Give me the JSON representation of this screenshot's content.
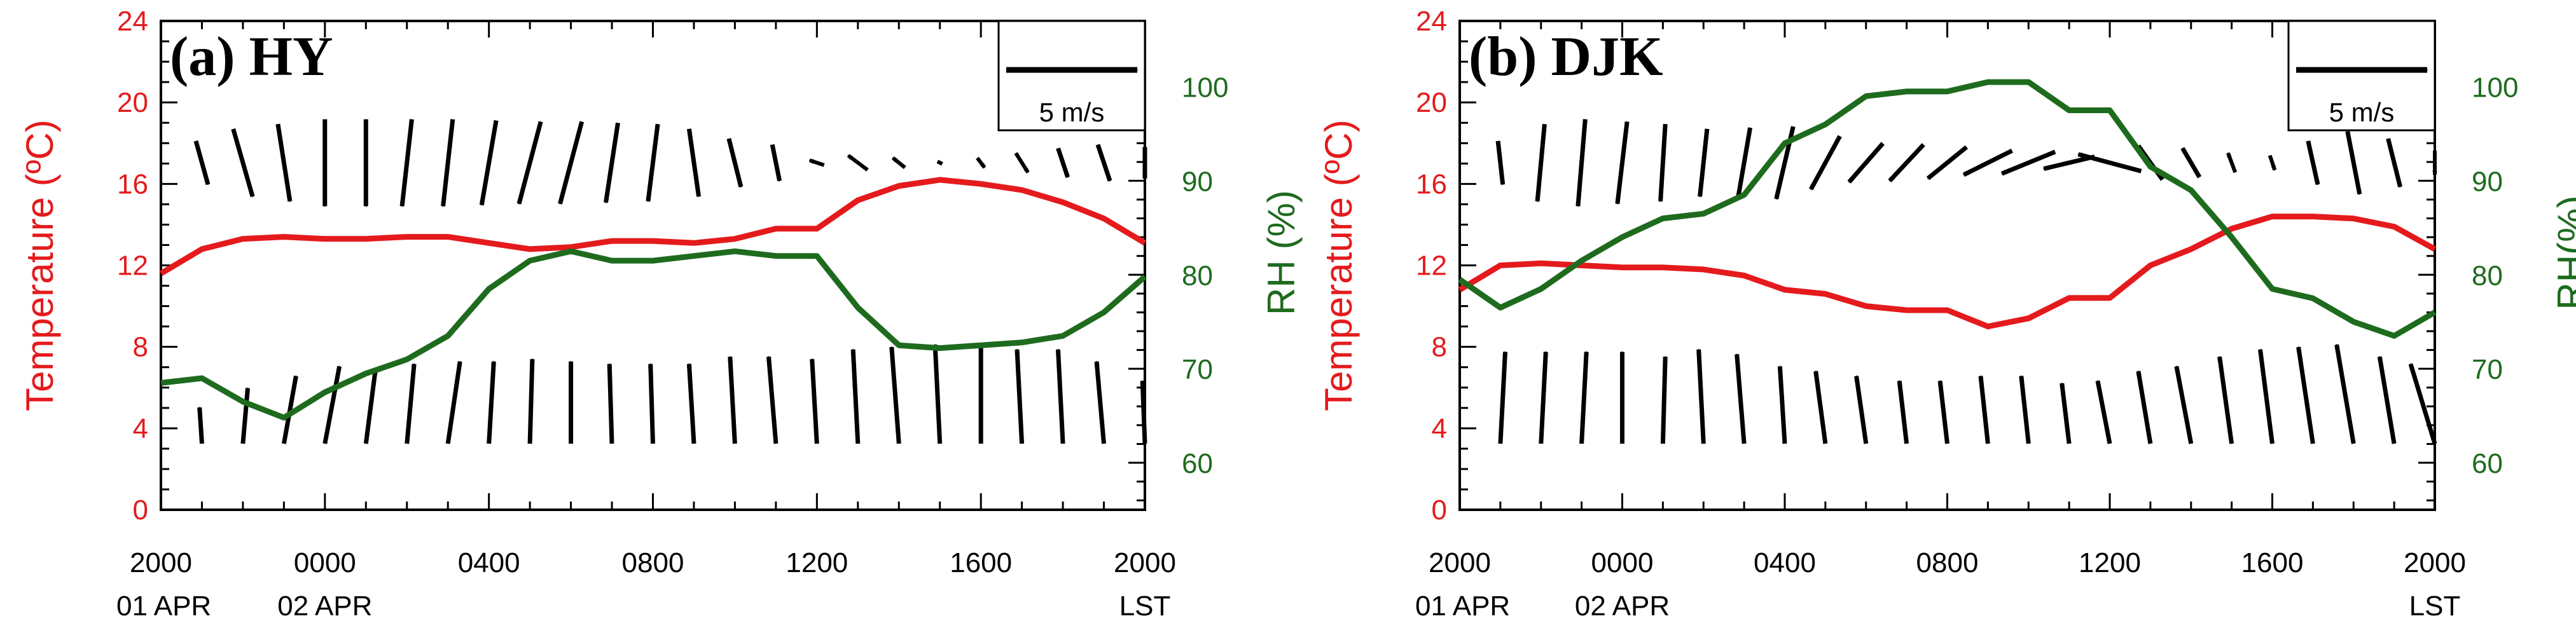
{
  "figure": {
    "x_tick_labels": [
      "2000",
      "0000",
      "0400",
      "0800",
      "1200",
      "1600",
      "2000"
    ],
    "x_date_labels": {
      "start": "01 APR",
      "day2": "02 APR",
      "end": "LST"
    },
    "temp_axis_label": "Temperature (ºC)",
    "rh_axis_label_a": "RH (%)",
    "rh_axis_label_b": "RH(%)",
    "temp_ticks": [
      "0",
      "4",
      "8",
      "12",
      "16",
      "20",
      "24"
    ],
    "rh_ticks": [
      "60",
      "70",
      "80",
      "90",
      "100"
    ],
    "reference_vector_label": "5 m/s",
    "colors": {
      "temperature": "#e41a1c",
      "rh": "#1e6b1e",
      "axes": "#000000",
      "vectors": "#000000"
    }
  },
  "chart_data": [
    {
      "type": "line",
      "panel_label": "(a) HY",
      "x_hours": [
        0,
        1,
        2,
        3,
        4,
        5,
        6,
        7,
        8,
        9,
        10,
        11,
        12,
        13,
        14,
        15,
        16,
        17,
        18,
        19,
        20,
        21,
        22,
        23,
        24
      ],
      "xlabel_ticks": [
        "2000",
        "0000",
        "0400",
        "0800",
        "1200",
        "1600",
        "2000"
      ],
      "ylim_left": [
        0,
        24
      ],
      "ylim_right": [
        55,
        107
      ],
      "series": [
        {
          "name": "Temperature",
          "axis": "left",
          "color": "#e41a1c",
          "values": [
            11.6,
            12.8,
            13.3,
            13.4,
            13.3,
            13.3,
            13.4,
            13.4,
            13.1,
            12.8,
            12.9,
            13.2,
            13.2,
            13.1,
            13.3,
            13.8,
            13.8,
            15.2,
            15.9,
            16.2,
            16.0,
            15.7,
            15.1,
            14.3,
            13.1
          ]
        },
        {
          "name": "RH",
          "axis": "right",
          "color": "#1e6b1e",
          "values": [
            68.5,
            69.0,
            66.5,
            64.8,
            67.5,
            69.5,
            71.0,
            73.5,
            78.5,
            81.5,
            82.5,
            81.5,
            81.5,
            82.0,
            82.5,
            82.0,
            82.0,
            76.5,
            72.5,
            72.2,
            72.5,
            72.8,
            73.5,
            76.0,
            79.8
          ]
        }
      ],
      "wind_vectors": {
        "upper_level": [
          {
            "u": 0.5,
            "v": -1.8
          },
          {
            "u": 0.8,
            "v": -2.8
          },
          {
            "u": 0.5,
            "v": -3.2
          },
          {
            "u": 0.0,
            "v": -3.6
          },
          {
            "u": 0.0,
            "v": -3.6
          },
          {
            "u": -0.4,
            "v": -3.6
          },
          {
            "u": -0.4,
            "v": -3.6
          },
          {
            "u": -0.6,
            "v": -3.5
          },
          {
            "u": -0.9,
            "v": -3.4
          },
          {
            "u": -0.9,
            "v": -3.4
          },
          {
            "u": -0.5,
            "v": -3.3
          },
          {
            "u": -0.4,
            "v": -3.2
          },
          {
            "u": 0.4,
            "v": -2.8
          },
          {
            "u": 0.5,
            "v": -2.0
          },
          {
            "u": 0.3,
            "v": -1.5
          },
          {
            "u": -0.6,
            "v": 0.2
          },
          {
            "u": -0.8,
            "v": 0.6
          },
          {
            "u": -0.5,
            "v": 0.4
          },
          {
            "u": -0.2,
            "v": 0.1
          },
          {
            "u": 0.3,
            "v": -0.4
          },
          {
            "u": 0.5,
            "v": -0.8
          },
          {
            "u": 0.4,
            "v": -1.2
          },
          {
            "u": 0.5,
            "v": -1.5
          },
          {
            "u": 0.0,
            "v": -1.3
          }
        ],
        "lower_level": [
          {
            "u": -0.1,
            "v": 1.5
          },
          {
            "u": 0.2,
            "v": 2.3
          },
          {
            "u": 0.5,
            "v": 2.8
          },
          {
            "u": 0.6,
            "v": 3.2
          },
          {
            "u": 0.4,
            "v": 3.1
          },
          {
            "u": 0.3,
            "v": 3.3
          },
          {
            "u": 0.5,
            "v": 3.4
          },
          {
            "u": 0.2,
            "v": 3.4
          },
          {
            "u": 0.1,
            "v": 3.5
          },
          {
            "u": 0.0,
            "v": 3.4
          },
          {
            "u": -0.1,
            "v": 3.3
          },
          {
            "u": -0.1,
            "v": 3.3
          },
          {
            "u": -0.2,
            "v": 3.3
          },
          {
            "u": -0.2,
            "v": 3.6
          },
          {
            "u": -0.3,
            "v": 3.6
          },
          {
            "u": -0.2,
            "v": 3.5
          },
          {
            "u": -0.2,
            "v": 3.9
          },
          {
            "u": -0.3,
            "v": 4.0
          },
          {
            "u": -0.2,
            "v": 4.1
          },
          {
            "u": 0.0,
            "v": 4.0
          },
          {
            "u": -0.2,
            "v": 3.9
          },
          {
            "u": -0.2,
            "v": 3.9
          },
          {
            "u": -0.3,
            "v": 3.4
          },
          {
            "u": -0.1,
            "v": 2.6
          }
        ]
      }
    },
    {
      "type": "line",
      "panel_label": "(b) DJK",
      "x_hours": [
        0,
        1,
        2,
        3,
        4,
        5,
        6,
        7,
        8,
        9,
        10,
        11,
        12,
        13,
        14,
        15,
        16,
        17,
        18,
        19,
        20,
        21,
        22,
        23,
        24
      ],
      "xlabel_ticks": [
        "2000",
        "0000",
        "0400",
        "0800",
        "1200",
        "1600",
        "2000"
      ],
      "ylim_left": [
        0,
        24
      ],
      "ylim_right": [
        55,
        107
      ],
      "series": [
        {
          "name": "Temperature",
          "axis": "left",
          "color": "#e41a1c",
          "values": [
            10.8,
            12.0,
            12.1,
            12.0,
            11.9,
            11.9,
            11.8,
            11.5,
            10.8,
            10.6,
            10.0,
            9.8,
            9.8,
            9.0,
            9.4,
            10.4,
            10.4,
            12.0,
            12.8,
            13.8,
            14.4,
            14.4,
            14.3,
            13.9,
            12.8
          ]
        },
        {
          "name": "RH",
          "axis": "right",
          "color": "#1e6b1e",
          "values": [
            79.5,
            76.5,
            78.5,
            81.5,
            84.0,
            86.0,
            86.5,
            88.5,
            94.0,
            96.0,
            99.0,
            99.5,
            99.5,
            100.5,
            100.5,
            97.5,
            97.5,
            91.5,
            89.0,
            84.0,
            78.5,
            77.5,
            75.0,
            73.5,
            76.0
          ]
        }
      ],
      "wind_vectors": {
        "upper_level": [
          {
            "u": 0.2,
            "v": -1.8
          },
          {
            "u": -0.3,
            "v": -3.2
          },
          {
            "u": -0.3,
            "v": -3.6
          },
          {
            "u": -0.4,
            "v": -3.4
          },
          {
            "u": -0.2,
            "v": -3.2
          },
          {
            "u": -0.3,
            "v": -2.8
          },
          {
            "u": -0.5,
            "v": -2.9
          },
          {
            "u": -0.7,
            "v": -3.0
          },
          {
            "u": -1.2,
            "v": -2.2
          },
          {
            "u": -1.4,
            "v": -1.6
          },
          {
            "u": -1.4,
            "v": -1.5
          },
          {
            "u": -1.6,
            "v": -1.3
          },
          {
            "u": -2.0,
            "v": -1.0
          },
          {
            "u": -2.2,
            "v": -0.9
          },
          {
            "u": -2.1,
            "v": -0.5
          },
          {
            "u": -2.6,
            "v": 0.7
          },
          {
            "u": -1.0,
            "v": 1.4
          },
          {
            "u": -0.7,
            "v": 1.2
          },
          {
            "u": -0.3,
            "v": 0.8
          },
          {
            "u": 0.2,
            "v": -0.6
          },
          {
            "u": 0.4,
            "v": -1.8
          },
          {
            "u": 0.5,
            "v": -2.6
          },
          {
            "u": 0.5,
            "v": -2.0
          },
          {
            "u": 0.0,
            "v": -1.0
          }
        ],
        "lower_level": [
          {
            "u": 0.2,
            "v": 3.8
          },
          {
            "u": 0.2,
            "v": 3.8
          },
          {
            "u": 0.2,
            "v": 3.8
          },
          {
            "u": 0.0,
            "v": 3.8
          },
          {
            "u": 0.1,
            "v": 3.6
          },
          {
            "u": -0.2,
            "v": 3.9
          },
          {
            "u": -0.3,
            "v": 3.7
          },
          {
            "u": -0.2,
            "v": 3.2
          },
          {
            "u": -0.4,
            "v": 3.0
          },
          {
            "u": -0.4,
            "v": 2.8
          },
          {
            "u": -0.3,
            "v": 2.6
          },
          {
            "u": -0.3,
            "v": 2.6
          },
          {
            "u": -0.3,
            "v": 2.8
          },
          {
            "u": -0.3,
            "v": 2.8
          },
          {
            "u": -0.3,
            "v": 2.5
          },
          {
            "u": -0.5,
            "v": 2.6
          },
          {
            "u": -0.5,
            "v": 3.0
          },
          {
            "u": -0.6,
            "v": 3.2
          },
          {
            "u": -0.5,
            "v": 3.6
          },
          {
            "u": -0.5,
            "v": 3.9
          },
          {
            "u": -0.6,
            "v": 4.0
          },
          {
            "u": -0.7,
            "v": 4.1
          },
          {
            "u": -0.6,
            "v": 3.6
          },
          {
            "u": -1.0,
            "v": 3.3
          }
        ]
      }
    }
  ]
}
